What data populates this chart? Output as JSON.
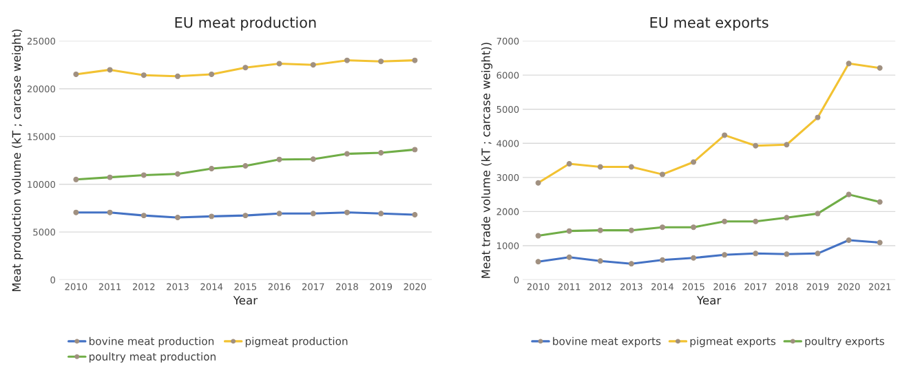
{
  "chart_data": [
    {
      "type": "line",
      "title": "EU meat production",
      "xlabel": "Year",
      "ylabel": "Meat production volume (kT ; carcase weight)",
      "categories": [
        "2010",
        "2011",
        "2012",
        "2013",
        "2014",
        "2015",
        "2016",
        "2017",
        "2018",
        "2019",
        "2020"
      ],
      "series": [
        {
          "name": "bovine meat production",
          "color": "#4472c4",
          "values": [
            7050,
            7050,
            6730,
            6520,
            6640,
            6730,
            6930,
            6930,
            7050,
            6930,
            6810
          ]
        },
        {
          "name": "pigmeat production",
          "color": "#f2c232",
          "values": [
            21520,
            21990,
            21430,
            21310,
            21520,
            22220,
            22630,
            22510,
            22980,
            22870,
            22980
          ]
        },
        {
          "name": "poultry meat production",
          "color": "#70ad47",
          "values": [
            10500,
            10730,
            10960,
            11080,
            11640,
            11930,
            12600,
            12630,
            13190,
            13300,
            13630
          ]
        }
      ],
      "ylim": [
        0,
        25000
      ],
      "yticks": [
        0,
        5000,
        10000,
        15000,
        20000,
        25000
      ],
      "grid": "y",
      "legend": "bottom",
      "marker": "circle",
      "line_style": "solid"
    },
    {
      "type": "line",
      "title": "EU meat exports",
      "xlabel": "Year",
      "ylabel": "Meat trade volume (kT ; carcase weight))",
      "categories": [
        "2010",
        "2011",
        "2012",
        "2013",
        "2014",
        "2015",
        "2016",
        "2017",
        "2018",
        "2019",
        "2020",
        "2021"
      ],
      "series": [
        {
          "name": "bovine meat exports",
          "color": "#4472c4",
          "values": [
            530,
            660,
            550,
            470,
            580,
            640,
            730,
            770,
            750,
            770,
            1160,
            1090
          ]
        },
        {
          "name": "pigmeat exports",
          "color": "#f2c232",
          "values": [
            2840,
            3400,
            3310,
            3310,
            3090,
            3450,
            4240,
            3930,
            3960,
            4760,
            6340,
            6210
          ]
        },
        {
          "name": "poultry exports",
          "color": "#70ad47",
          "values": [
            1290,
            1430,
            1450,
            1450,
            1540,
            1540,
            1710,
            1710,
            1820,
            1940,
            2500,
            2280
          ]
        }
      ],
      "ylim": [
        0,
        7000
      ],
      "yticks": [
        0,
        1000,
        2000,
        3000,
        4000,
        5000,
        6000,
        7000
      ],
      "grid": "y",
      "legend": "bottom",
      "marker": "circle",
      "line_style": "solid"
    }
  ]
}
